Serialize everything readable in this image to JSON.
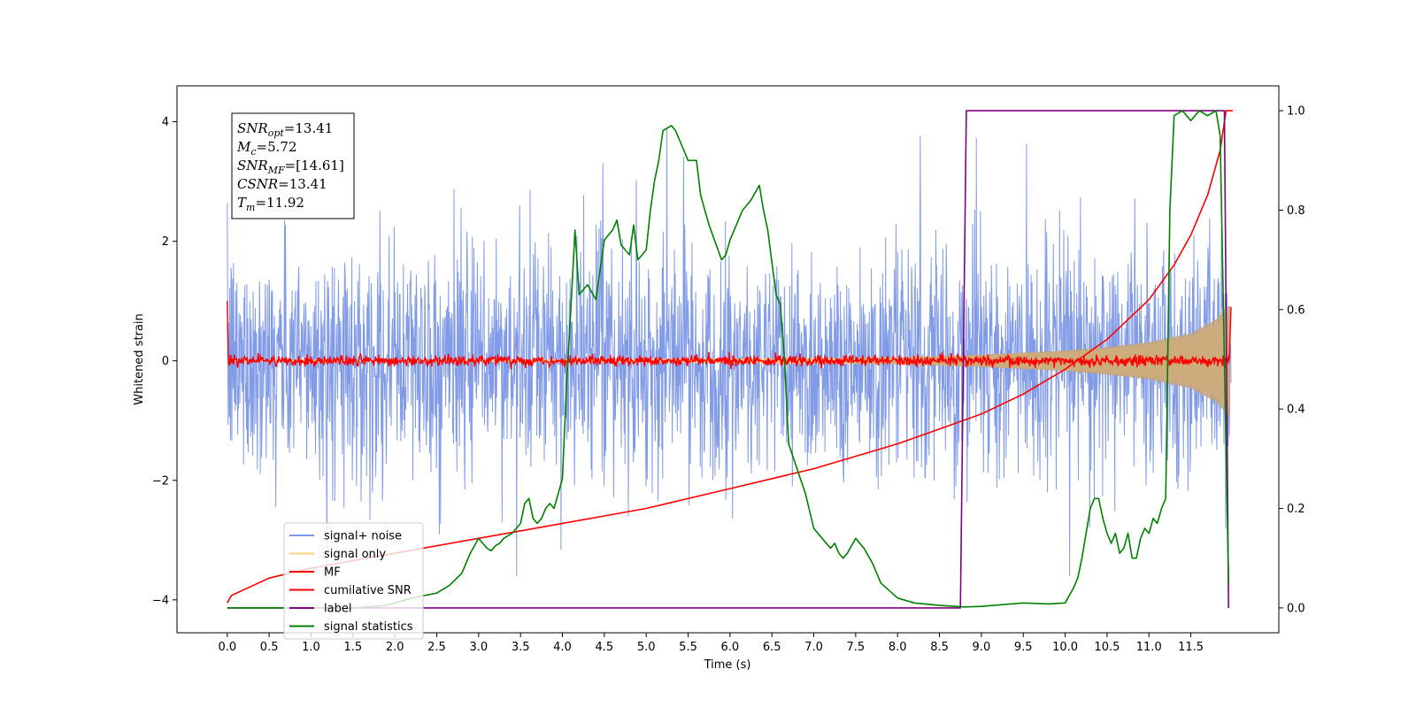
{
  "chart_data": {
    "type": "line",
    "xlabel": "Time (s)",
    "ylabel_left": "Whitened strain",
    "xlim": [
      -0.6,
      12.55
    ],
    "ylim_left": [
      -4.55,
      4.6
    ],
    "ylim_right": [
      -0.05,
      1.05
    ],
    "x_ticks": [
      0.0,
      0.5,
      1.0,
      1.5,
      2.0,
      2.5,
      3.0,
      3.5,
      4.0,
      4.5,
      5.0,
      5.5,
      6.0,
      6.5,
      7.0,
      7.5,
      8.0,
      8.5,
      9.0,
      9.5,
      10.0,
      10.5,
      11.0,
      11.5
    ],
    "x_tick_labels": [
      "0.0",
      "0.5",
      "1.0",
      "1.5",
      "2.0",
      "2.5",
      "3.0",
      "3.5",
      "4.0",
      "4.5",
      "5.0",
      "5.5",
      "6.0",
      "6.5",
      "7.0",
      "7.5",
      "8.0",
      "8.5",
      "9.0",
      "9.5",
      "10.0",
      "10.5",
      "11.0",
      "11.5"
    ],
    "y_left_ticks": [
      4,
      2,
      0,
      -2,
      -4
    ],
    "y_left_tick_labels": [
      "4",
      "2",
      "0",
      "−2",
      "−4"
    ],
    "y_right_ticks": [
      1.0,
      0.8,
      0.6,
      0.4,
      0.2,
      0.0
    ],
    "y_right_tick_labels": [
      "1.0",
      "0.8",
      "0.6",
      "0.4",
      "0.2",
      "0.0"
    ],
    "annotation": [
      {
        "base": "SNR",
        "sub": "opt",
        "value": "=13.41"
      },
      {
        "base": "M",
        "sub": "c",
        "value": "=5.72"
      },
      {
        "base": "SNR",
        "sub": "MF",
        "value": "=[14.61]"
      },
      {
        "base": "CSNR",
        "sub": "",
        "value": "=13.41"
      },
      {
        "base": "T",
        "sub": "m",
        "value": "=11.92"
      }
    ],
    "legend_position": "lower-left",
    "legend": [
      {
        "label": "signal+ noise",
        "color": "#7b96e6"
      },
      {
        "label": "signal only",
        "color": "#ffd27f"
      },
      {
        "label": "MF",
        "color": "#ff0000"
      },
      {
        "label": "cumilative SNR",
        "color": "#ff0000"
      },
      {
        "label": "label",
        "color": "#800080"
      },
      {
        "label": "signal statistics",
        "color": "#008000"
      }
    ],
    "series": [
      {
        "name": "signal+ noise",
        "axis": "left",
        "color": "#7b96e6",
        "description": "whitened noisy strain, roughly symmetric about 0 with envelope approx ±2.5, spikes to ~3.9",
        "x_range": [
          0.0,
          11.98
        ],
        "envelope": 2.5
      },
      {
        "name": "signal only",
        "axis": "left",
        "color": "#ffd27f",
        "description": "chirp signal growing in amplitude toward ~11.9 s",
        "amplitude_points": {
          "x": [
            0,
            8.0,
            9.0,
            10.0,
            10.5,
            11.0,
            11.5,
            11.8,
            11.95
          ],
          "y": [
            0.0,
            0.05,
            0.09,
            0.15,
            0.2,
            0.27,
            0.4,
            0.6,
            0.8
          ]
        }
      },
      {
        "name": "MF",
        "axis": "left",
        "color": "#ff0000",
        "description": "matched filter output, noise around 0 with amplitude ~0.1, starts at 1.0",
        "x_range": [
          0.0,
          11.98
        ]
      },
      {
        "name": "cumilative SNR",
        "axis": "right",
        "color": "#ff0000",
        "x": [
          0.0,
          0.05,
          0.5,
          1.0,
          2.0,
          3.0,
          4.0,
          5.0,
          6.0,
          7.0,
          8.0,
          8.5,
          9.0,
          9.5,
          10.0,
          10.5,
          11.0,
          11.3,
          11.5,
          11.7,
          11.85,
          11.92,
          12.0
        ],
        "y": [
          0.01,
          0.025,
          0.06,
          0.08,
          0.11,
          0.14,
          0.17,
          0.2,
          0.24,
          0.28,
          0.33,
          0.36,
          0.39,
          0.43,
          0.48,
          0.54,
          0.62,
          0.69,
          0.75,
          0.83,
          0.92,
          1.0,
          1.0
        ]
      },
      {
        "name": "label",
        "axis": "right",
        "color": "#800080",
        "x": [
          0.0,
          8.75,
          8.82,
          11.9,
          11.95
        ],
        "y": [
          0.0,
          0.0,
          1.0,
          1.0,
          0.0
        ]
      },
      {
        "name": "signal statistics",
        "axis": "right",
        "color": "#008000",
        "x": [
          0.0,
          1.5,
          1.9,
          2.2,
          2.5,
          2.65,
          2.8,
          2.9,
          3.0,
          3.05,
          3.1,
          3.15,
          3.2,
          3.25,
          3.3,
          3.4,
          3.5,
          3.55,
          3.6,
          3.65,
          3.7,
          3.75,
          3.8,
          3.85,
          3.9,
          3.95,
          4.0,
          4.05,
          4.1,
          4.15,
          4.2,
          4.3,
          4.4,
          4.5,
          4.55,
          4.6,
          4.65,
          4.7,
          4.75,
          4.8,
          4.85,
          4.9,
          4.95,
          5.0,
          5.05,
          5.1,
          5.15,
          5.2,
          5.3,
          5.35,
          5.45,
          5.5,
          5.55,
          5.6,
          5.65,
          5.75,
          5.9,
          5.95,
          6.0,
          6.05,
          6.15,
          6.25,
          6.35,
          6.4,
          6.45,
          6.55,
          6.6,
          6.65,
          6.7,
          6.8,
          6.9,
          7.0,
          7.1,
          7.2,
          7.25,
          7.3,
          7.35,
          7.4,
          7.5,
          7.6,
          7.7,
          7.8,
          8.0,
          8.2,
          8.5,
          8.8,
          9.0,
          9.5,
          9.8,
          10.0,
          10.1,
          10.15,
          10.2,
          10.25,
          10.3,
          10.35,
          10.4,
          10.45,
          10.5,
          10.55,
          10.6,
          10.65,
          10.7,
          10.75,
          10.8,
          10.85,
          10.9,
          10.95,
          11.0,
          11.05,
          11.1,
          11.15,
          11.2,
          11.25,
          11.3,
          11.4,
          11.5,
          11.55,
          11.6,
          11.7,
          11.8,
          11.85,
          11.9,
          11.95
        ],
        "y": [
          0.0,
          0.0,
          0.005,
          0.02,
          0.03,
          0.045,
          0.07,
          0.11,
          0.14,
          0.13,
          0.12,
          0.115,
          0.125,
          0.13,
          0.14,
          0.15,
          0.17,
          0.21,
          0.22,
          0.18,
          0.17,
          0.18,
          0.2,
          0.21,
          0.2,
          0.23,
          0.26,
          0.45,
          0.6,
          0.76,
          0.63,
          0.65,
          0.62,
          0.74,
          0.75,
          0.76,
          0.78,
          0.73,
          0.72,
          0.71,
          0.77,
          0.7,
          0.71,
          0.72,
          0.8,
          0.86,
          0.9,
          0.96,
          0.97,
          0.96,
          0.92,
          0.9,
          0.9,
          0.9,
          0.83,
          0.77,
          0.7,
          0.71,
          0.74,
          0.76,
          0.8,
          0.82,
          0.85,
          0.8,
          0.76,
          0.63,
          0.61,
          0.5,
          0.33,
          0.28,
          0.23,
          0.16,
          0.14,
          0.12,
          0.13,
          0.11,
          0.1,
          0.11,
          0.14,
          0.12,
          0.09,
          0.05,
          0.02,
          0.01,
          0.005,
          0.002,
          0.003,
          0.01,
          0.008,
          0.01,
          0.04,
          0.06,
          0.1,
          0.15,
          0.2,
          0.22,
          0.22,
          0.18,
          0.15,
          0.13,
          0.15,
          0.11,
          0.12,
          0.15,
          0.1,
          0.1,
          0.14,
          0.16,
          0.15,
          0.18,
          0.17,
          0.2,
          0.22,
          0.8,
          0.99,
          1.0,
          0.98,
          0.99,
          1.0,
          0.99,
          1.0,
          0.95,
          0.5,
          0.05
        ]
      }
    ]
  }
}
